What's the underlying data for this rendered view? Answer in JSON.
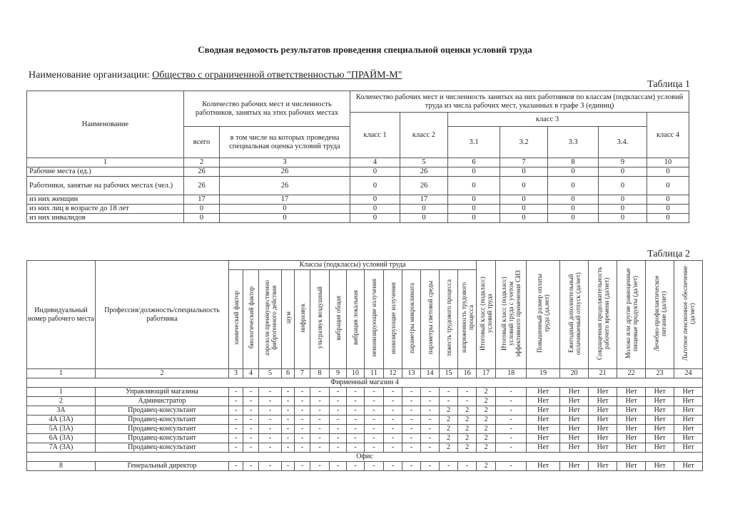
{
  "title": "Сводная ведомость результатов проведения специальной оценки условий труда",
  "org": {
    "label": "Наименование организации:",
    "value": "Общество с ограниченной ответственностью \"ПРАЙМ-М\""
  },
  "table1": {
    "label": "Таблица 1",
    "h_name": "Наименование",
    "h_count": "Количество рабочих мест и численность работников, занятых на этих рабочих местах",
    "h_classes": "Количество рабочих мест и численность занятых на них работников по классам (подклассам) условий труда из числа рабочих мест, указанных в графе 3 (единиц)",
    "h_total": "всего",
    "h_assessed": "в том числе на которых проведена специальная оценка условий труда",
    "h_c1": "класс 1",
    "h_c2": "класс 2",
    "h_c3": "класс 3",
    "h_c4": "класс 4",
    "h_sub": [
      "3.1",
      "3.2",
      "3.3",
      "3.4."
    ],
    "nums": [
      "1",
      "2",
      "3",
      "4",
      "5",
      "6",
      "7",
      "8",
      "9",
      "10"
    ],
    "rows": [
      [
        "Рабочие места (ед.)",
        "26",
        "26",
        "0",
        "26",
        "0",
        "0",
        "0",
        "0",
        "0"
      ],
      [
        "Работники, занятые на рабочих местах (чел.)",
        "26",
        "26",
        "0",
        "26",
        "0",
        "0",
        "0",
        "0",
        "0"
      ],
      [
        "из них женщин",
        "17",
        "17",
        "0",
        "17",
        "0",
        "0",
        "0",
        "0",
        "0"
      ],
      [
        "из них лиц в возрасте до 18 лет",
        "0",
        "0",
        "0",
        "0",
        "0",
        "0",
        "0",
        "0",
        "0"
      ],
      [
        "из них инвалидов",
        "0",
        "0",
        "0",
        "0",
        "0",
        "0",
        "0",
        "0",
        "0"
      ]
    ]
  },
  "table2": {
    "label": "Таблица 2",
    "h_id": "Индивидуальный номер рабочего места",
    "h_prof": "Профессия/должность/специальность работника",
    "h_classes": "Классы (подклассы) условий труда",
    "h_factors": [
      "химический фактор",
      "биологический фактор",
      "аэрозоли преимущественно фиброгенного действия",
      "шум",
      "инфразвук",
      "ультразвук воздушный",
      "вибрация общая",
      "вибрация локальная",
      "неионизирующие излучения",
      "ионизирующие излучения",
      "параметры микроклимата",
      "параметры световой среды",
      "тяжесть трудового процесса",
      "напряженность трудового процесса"
    ],
    "h_right": [
      "Итоговый класс (подкласс) условий труда",
      "Итоговый класс (подкласс) условий труда с учетом эффективного применения СИЗ",
      "Повышенный размер оплаты труда (да,нет)",
      "Ежегодный дополнительный оплачиваемый отпуск (да/нет)",
      "Сокращенная продолжительность рабочего времени (да/нет)",
      "Молоко или другие равноценные пищевые продукты (да/нет)",
      "Лечебно-профилактическое питание (да/нет)",
      "Льготное пенсионное обеспечение (да/нет)"
    ],
    "nums": [
      "1",
      "2",
      "3",
      "4",
      "5",
      "6",
      "7",
      "8",
      "9",
      "10",
      "11",
      "12",
      "13",
      "14",
      "15",
      "16",
      "17",
      "18",
      "19",
      "20",
      "21",
      "22",
      "23",
      "24"
    ],
    "sections": [
      {
        "name": "Фирменный магазин 4",
        "rows": [
          [
            "1",
            "Управляющий магазина",
            "-",
            "-",
            "-",
            "-",
            "-",
            "-",
            "-",
            "-",
            "-",
            "-",
            "-",
            "-",
            "-",
            "-",
            "2",
            "-",
            "Нет",
            "Нет",
            "Нет",
            "Нет",
            "Нет",
            "Нет"
          ],
          [
            "2",
            "Администратор",
            "-",
            "-",
            "-",
            "-",
            "-",
            "-",
            "-",
            "-",
            "-",
            "-",
            "-",
            "-",
            "-",
            "-",
            "2",
            "-",
            "Нет",
            "Нет",
            "Нет",
            "Нет",
            "Нет",
            "Нет"
          ],
          [
            "3А",
            "Продавец-консультант",
            "-",
            "-",
            "-",
            "-",
            "-",
            "-",
            "-",
            "-",
            "-",
            "-",
            "-",
            "-",
            "2",
            "2",
            "2",
            "-",
            "Нет",
            "Нет",
            "Нет",
            "Нет",
            "Нет",
            "Нет"
          ],
          [
            "4А (3А)",
            "Продавец-консультант",
            "-",
            "-",
            "-",
            "-",
            "-",
            "-",
            "-",
            "-",
            "-",
            "-",
            "-",
            "-",
            "2",
            "2",
            "2",
            "-",
            "Нет",
            "Нет",
            "Нет",
            "Нет",
            "Нет",
            "Нет"
          ],
          [
            "5А (3А)",
            "Продавец-консультант",
            "-",
            "-",
            "-",
            "-",
            "-",
            "-",
            "-",
            "-",
            "-",
            "-",
            "-",
            "-",
            "2",
            "2",
            "2",
            "-",
            "Нет",
            "Нет",
            "Нет",
            "Нет",
            "Нет",
            "Нет"
          ],
          [
            "6А (3А)",
            "Продавец-консультант",
            "-",
            "-",
            "-",
            "-",
            "-",
            "-",
            "-",
            "-",
            "-",
            "-",
            "-",
            "-",
            "2",
            "2",
            "2",
            "-",
            "Нет",
            "Нет",
            "Нет",
            "Нет",
            "Нет",
            "Нет"
          ],
          [
            "7А (3А)",
            "Продавец-консультант",
            "-",
            "-",
            "-",
            "-",
            "-",
            "-",
            "-",
            "-",
            "-",
            "-",
            "-",
            "-",
            "2",
            "2",
            "2",
            "-",
            "Нет",
            "Нет",
            "Нет",
            "Нет",
            "Нет",
            "Нет"
          ]
        ]
      },
      {
        "name": "Офис",
        "rows": [
          [
            "8",
            "Генеральный директор",
            "-",
            "-",
            "-",
            "-",
            "-",
            "-",
            "-",
            "-",
            "-",
            "-",
            "-",
            "-",
            "-",
            "-",
            "2",
            "-",
            "Нет",
            "Нет",
            "Нет",
            "Нет",
            "Нет",
            "Нет"
          ]
        ]
      }
    ]
  }
}
